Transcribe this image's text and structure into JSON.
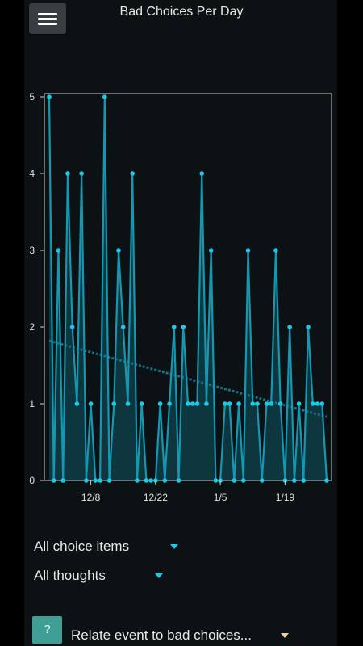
{
  "header": {
    "title": "Bad Choices Per Day"
  },
  "filters": {
    "choice_items": "All choice items",
    "thoughts": "All thoughts"
  },
  "relate": {
    "help_label": "?",
    "label": "Relate event to bad choices..."
  },
  "colors": {
    "accent": "#1fc7e6",
    "line": "#1497b0",
    "area": "#0f3d46",
    "trend": "#1a6f86",
    "help_button": "#3f9e96"
  },
  "chart_data": {
    "type": "line",
    "title": "",
    "ylim": [
      0,
      5
    ],
    "yticks": [
      "0",
      "1",
      "2",
      "3",
      "4",
      "5"
    ],
    "xticks": [
      "12/8",
      "12/22",
      "1/5",
      "1/19"
    ],
    "xtick_days": [
      9,
      23,
      37,
      51
    ],
    "x_start": "11/30",
    "values": [
      5,
      0,
      3,
      0,
      4,
      2,
      1,
      4,
      0,
      1,
      0,
      0,
      5,
      0,
      1,
      3,
      2,
      1,
      4,
      0,
      1,
      0,
      0,
      0,
      1,
      0,
      1,
      2,
      0,
      2,
      1,
      1,
      1,
      4,
      1,
      3,
      0,
      0,
      1,
      1,
      0,
      1,
      0,
      3,
      1,
      1,
      0,
      1,
      1,
      3,
      1,
      0,
      2,
      0,
      1,
      0,
      2,
      1,
      1,
      1,
      0
    ],
    "trend": {
      "start": 1.82,
      "end": 0.83
    },
    "grid": false
  }
}
